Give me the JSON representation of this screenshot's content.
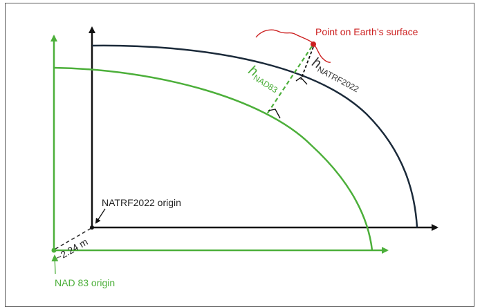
{
  "labels": {
    "point_on_surface": "Point on Earth’s surface",
    "natrf_origin": "NATRF2022 origin",
    "nad83_origin": "NAD 83 origin",
    "offset": "~2.24 m",
    "h_nad83_main": "h",
    "h_nad83_sub": "NAD83",
    "h_natrf_main": "h",
    "h_natrf_sub": "NATRF2022"
  },
  "colors": {
    "natrf": "#1b2a3a",
    "nad83": "#4caf3a",
    "surface": "#cc1f1f",
    "text_dark": "#222222",
    "offset_line": "#222222"
  }
}
